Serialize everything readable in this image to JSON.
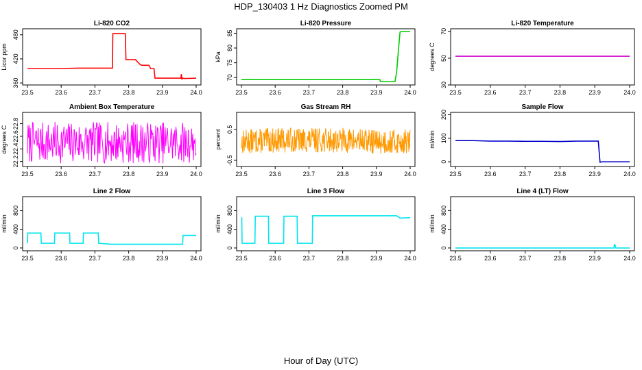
{
  "figure": {
    "title": "HDP_130403  1 Hz Diagnostics Zoomed PM",
    "xlabel": "Hour of Day (UTC)"
  },
  "chart_data": [
    {
      "type": "line",
      "title": "Li-820 CO2",
      "ylabel": "Licor ppm",
      "color": "#ff0000",
      "xlim": [
        23.5,
        24.0
      ],
      "ylim": [
        355,
        495
      ],
      "xticks": [
        23.5,
        23.6,
        23.7,
        23.8,
        23.9,
        24.0
      ],
      "xtick_labels": [
        "23.5",
        "23.6",
        "23.7",
        "23.8",
        "23.9",
        "24.0"
      ],
      "yticks": [
        360,
        420,
        480
      ],
      "ytick_labels": [
        "360",
        "420",
        "480"
      ],
      "series": [
        {
          "x": [
            23.5,
            23.6,
            23.65,
            23.752,
            23.753,
            23.79,
            23.792,
            23.82,
            23.835,
            23.84,
            23.86,
            23.865,
            23.875,
            23.878,
            23.955,
            23.956,
            23.958,
            23.96,
            23.965,
            24.0
          ],
          "y": [
            396,
            396,
            397,
            397,
            483,
            483,
            418,
            418,
            405,
            404,
            404,
            396,
            396,
            372,
            372,
            382,
            370,
            372,
            371,
            372
          ]
        }
      ]
    },
    {
      "type": "line",
      "title": "Li-820 Pressure",
      "ylabel": "kPa",
      "color": "#00cc00",
      "xlim": [
        23.5,
        24.0
      ],
      "ylim": [
        67.5,
        86.5
      ],
      "xticks": [
        23.5,
        23.6,
        23.7,
        23.8,
        23.9,
        24.0
      ],
      "xtick_labels": [
        "23.5",
        "23.6",
        "23.7",
        "23.8",
        "23.9",
        "24.0"
      ],
      "yticks": [
        70,
        75,
        80,
        85
      ],
      "ytick_labels": [
        "70",
        "75",
        "80",
        "85"
      ],
      "series": [
        {
          "x": [
            23.5,
            23.7,
            23.91,
            23.912,
            23.955,
            23.96,
            23.965,
            23.97,
            23.975,
            24.0
          ],
          "y": [
            69.3,
            69.3,
            69.3,
            68.6,
            68.6,
            72,
            79,
            85.4,
            85.6,
            85.6
          ]
        }
      ]
    },
    {
      "type": "line",
      "title": "Li-820 Temperature",
      "ylabel": "degrees C",
      "color": "#cc00cc",
      "xlim": [
        23.5,
        24.0
      ],
      "ylim": [
        30,
        72
      ],
      "xticks": [
        23.5,
        23.6,
        23.7,
        23.8,
        23.9,
        24.0
      ],
      "xtick_labels": [
        "23.5",
        "23.6",
        "23.7",
        "23.8",
        "23.9",
        "24.0"
      ],
      "yticks": [
        30,
        50,
        70
      ],
      "ytick_labels": [
        "30",
        "50",
        "70"
      ],
      "series": [
        {
          "x": [
            23.5,
            24.0
          ],
          "y": [
            51.5,
            51.5
          ]
        }
      ]
    },
    {
      "type": "line",
      "title": "Ambient Box Temperature",
      "ylabel": "degrees C",
      "color": "#ff00ff",
      "xlim": [
        23.5,
        24.0
      ],
      "ylim": [
        22.12,
        22.98
      ],
      "xticks": [
        23.5,
        23.6,
        23.7,
        23.8,
        23.9,
        24.0
      ],
      "xtick_labels": [
        "23.5",
        "23.6",
        "23.7",
        "23.8",
        "23.9",
        "24.0"
      ],
      "yticks": [
        22.2,
        22.4,
        22.6,
        22.8
      ],
      "ytick_labels": [
        "22.2",
        "22.4",
        "22.6",
        "22.8"
      ],
      "series": [
        {
          "x": [
            23.5,
            23.6,
            23.7,
            23.8,
            23.9,
            24.0
          ],
          "y": [
            22.5,
            22.5,
            22.5,
            22.5,
            22.5,
            22.5
          ]
        }
      ],
      "noise": {
        "count": 300,
        "spread": 0.33,
        "seed": 7
      }
    },
    {
      "type": "line",
      "title": "Gas Stream RH",
      "ylabel": "percent",
      "color": "#ff9900",
      "xlim": [
        23.5,
        24.0
      ],
      "ylim": [
        -0.7,
        1.05
      ],
      "xticks": [
        23.5,
        23.6,
        23.7,
        23.8,
        23.9,
        24.0
      ],
      "xtick_labels": [
        "23.5",
        "23.6",
        "23.7",
        "23.8",
        "23.9",
        "24.0"
      ],
      "yticks": [
        -0.5,
        0.5
      ],
      "ytick_labels": [
        "-0.5",
        "0.5"
      ],
      "series": [
        {
          "x": [
            23.5,
            23.6,
            23.7,
            23.8,
            23.9,
            24.0
          ],
          "y": [
            0.1,
            0.15,
            0.15,
            0.15,
            0.1,
            0.1
          ]
        }
      ],
      "noise": {
        "count": 500,
        "spread": 0.4,
        "seed": 13
      }
    },
    {
      "type": "line",
      "title": "Sample Flow",
      "ylabel": "ml/min",
      "color": "#0000cc",
      "xlim": [
        23.5,
        24.0
      ],
      "ylim": [
        -20,
        210
      ],
      "xticks": [
        23.5,
        23.6,
        23.7,
        23.8,
        23.9,
        24.0
      ],
      "xtick_labels": [
        "23.5",
        "23.6",
        "23.7",
        "23.8",
        "23.9",
        "24.0"
      ],
      "yticks": [
        0,
        100,
        200
      ],
      "ytick_labels": [
        "0",
        "100",
        "200"
      ],
      "series": [
        {
          "x": [
            23.5,
            23.55,
            23.6,
            23.65,
            23.7,
            23.75,
            23.8,
            23.85,
            23.9,
            23.91,
            23.915,
            23.92,
            24.0
          ],
          "y": [
            90,
            90,
            88,
            88,
            87,
            87,
            86,
            88,
            88,
            88,
            -2,
            0,
            0
          ]
        }
      ]
    },
    {
      "type": "line",
      "title": "Line 2 Flow",
      "ylabel": "ml/min",
      "color": "#00e5ee",
      "xlim": [
        23.5,
        24.0
      ],
      "ylim": [
        -60,
        1100
      ],
      "xticks": [
        23.5,
        23.6,
        23.7,
        23.8,
        23.9,
        24.0
      ],
      "xtick_labels": [
        "23.5",
        "23.6",
        "23.7",
        "23.8",
        "23.9",
        "24.0"
      ],
      "yticks": [
        0,
        400,
        800
      ],
      "ytick_labels": [
        "0",
        "400",
        "800"
      ],
      "series": [
        {
          "x": [
            23.5,
            23.501,
            23.54,
            23.541,
            23.58,
            23.581,
            23.625,
            23.626,
            23.665,
            23.666,
            23.71,
            23.711,
            23.75,
            23.96,
            23.961,
            24.0
          ],
          "y": [
            100,
            320,
            320,
            100,
            100,
            320,
            320,
            100,
            100,
            320,
            320,
            100,
            80,
            80,
            270,
            270
          ]
        }
      ]
    },
    {
      "type": "line",
      "title": "Line 3 Flow",
      "ylabel": "ml/min",
      "color": "#00e5ee",
      "xlim": [
        23.5,
        24.0
      ],
      "ylim": [
        -60,
        1100
      ],
      "xticks": [
        23.5,
        23.6,
        23.7,
        23.8,
        23.9,
        24.0
      ],
      "xtick_labels": [
        "23.5",
        "23.6",
        "23.7",
        "23.8",
        "23.9",
        "24.0"
      ],
      "yticks": [
        0,
        400,
        800
      ],
      "ytick_labels": [
        "0",
        "400",
        "800"
      ],
      "series": [
        {
          "x": [
            23.5,
            23.501,
            23.502,
            23.54,
            23.541,
            23.58,
            23.581,
            23.625,
            23.626,
            23.665,
            23.666,
            23.71,
            23.711,
            23.96,
            23.97,
            24.0
          ],
          "y": [
            650,
            650,
            100,
            100,
            680,
            680,
            100,
            100,
            680,
            680,
            100,
            100,
            690,
            690,
            640,
            650
          ]
        }
      ]
    },
    {
      "type": "line",
      "title": "Line 4 (LT) Flow",
      "ylabel": "ml/min",
      "color": "#00e5ee",
      "xlim": [
        23.5,
        24.0
      ],
      "ylim": [
        -60,
        1100
      ],
      "xticks": [
        23.5,
        23.6,
        23.7,
        23.8,
        23.9,
        24.0
      ],
      "xtick_labels": [
        "23.5",
        "23.6",
        "23.7",
        "23.8",
        "23.9",
        "24.0"
      ],
      "yticks": [
        0,
        400,
        800
      ],
      "ytick_labels": [
        "0",
        "400",
        "800"
      ],
      "series": [
        {
          "x": [
            23.5,
            23.955,
            23.956,
            23.958,
            23.96,
            24.0
          ],
          "y": [
            0,
            0,
            70,
            70,
            0,
            0
          ]
        }
      ]
    }
  ]
}
